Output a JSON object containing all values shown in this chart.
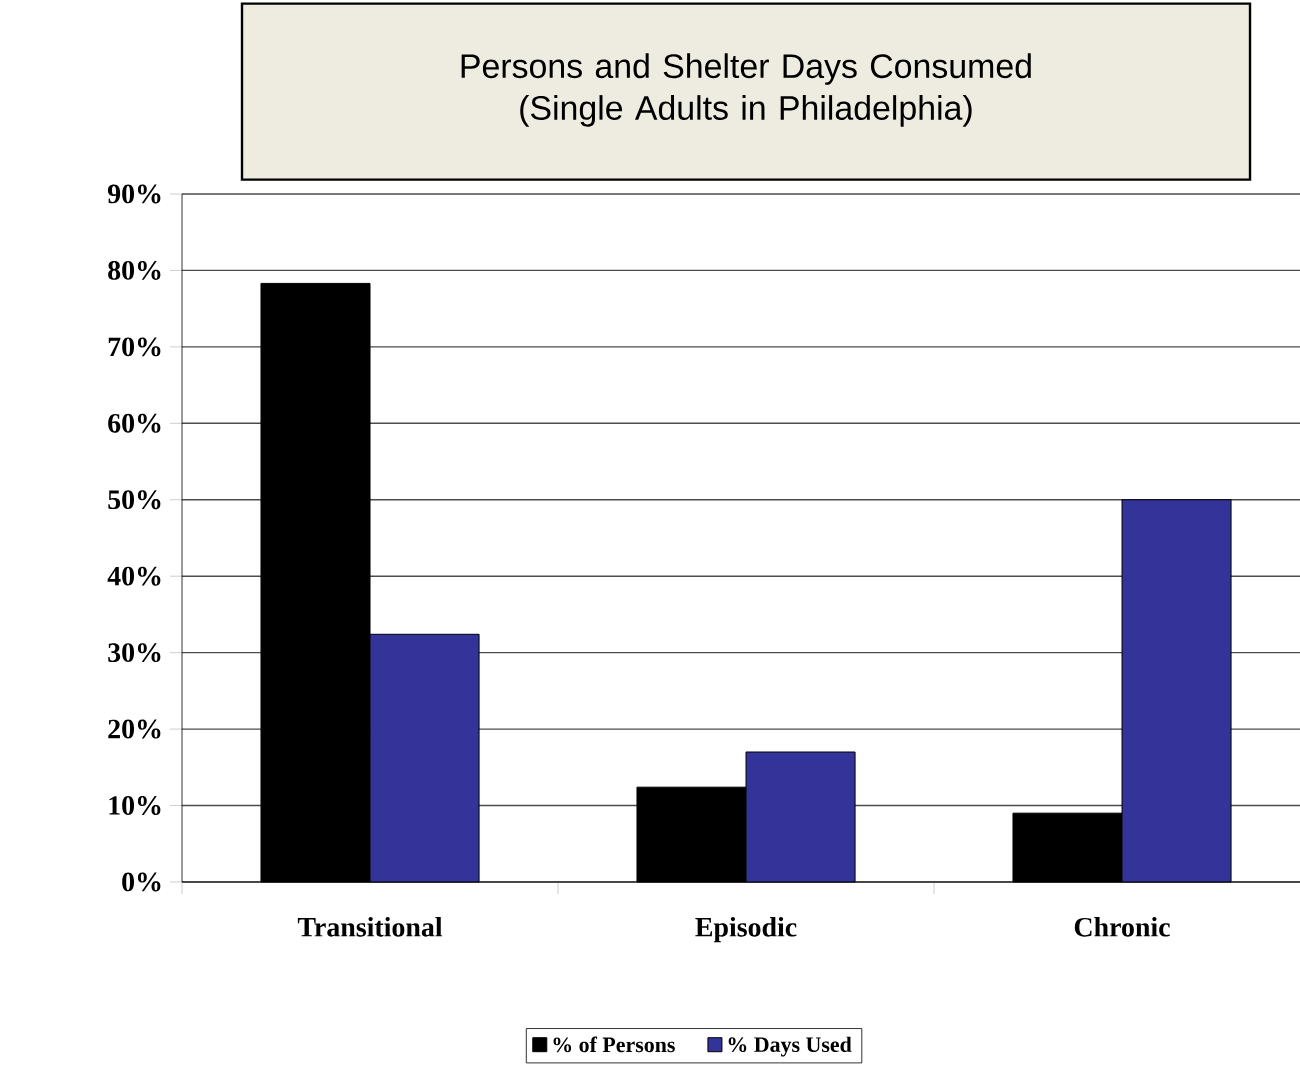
{
  "chart_data": {
    "type": "bar",
    "title": "Persons and Shelter Days Consumed\n(Single Adults in Philadelphia)",
    "categories": [
      "Transitional",
      "Episodic",
      "Chronic"
    ],
    "series": [
      {
        "name": "% of Persons",
        "color": "#000000",
        "values": [
          78.3,
          12.4,
          9.0
        ]
      },
      {
        "name": "% Days Used",
        "color": "#333399",
        "values": [
          32.4,
          17.0,
          50
        ]
      }
    ],
    "ylim": [
      0,
      90
    ],
    "yticks": [
      {
        "value": 0,
        "label": "0%"
      },
      {
        "value": 10,
        "label": "10%"
      },
      {
        "value": 20,
        "label": "20%"
      },
      {
        "value": 30,
        "label": "30%"
      },
      {
        "value": 40,
        "label": "40%"
      },
      {
        "value": 50,
        "label": "50%"
      },
      {
        "value": 60,
        "label": "60%"
      },
      {
        "value": 70,
        "label": "70%"
      },
      {
        "value": 80,
        "label": "80%"
      },
      {
        "value": 90,
        "label": "90%"
      }
    ],
    "grid": "y",
    "legend": "bottom"
  }
}
